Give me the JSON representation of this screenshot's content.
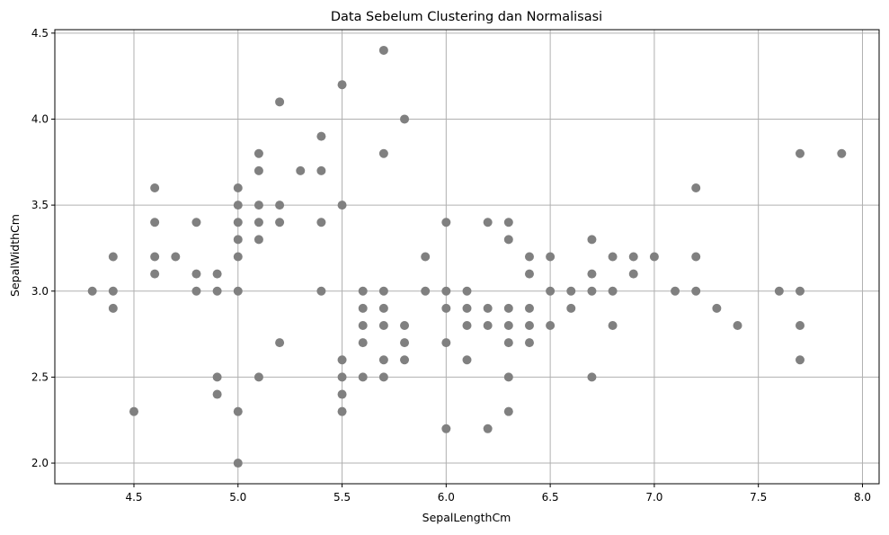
{
  "chart_data": {
    "type": "scatter",
    "title": "Data Sebelum Clustering dan Normalisasi",
    "xlabel": "SepalLengthCm",
    "ylabel": "SepalWidthCm",
    "xlim": [
      4.12,
      8.08
    ],
    "ylim": [
      1.88,
      4.52
    ],
    "xticks": [
      "4.5",
      "5.0",
      "5.5",
      "6.0",
      "6.5",
      "7.0",
      "7.5",
      "8.0"
    ],
    "yticks": [
      "2.0",
      "2.5",
      "3.0",
      "3.5",
      "4.0",
      "4.5"
    ],
    "grid": true,
    "marker_color": "#808080",
    "grid_color": "#b0b0b0",
    "points": [
      [
        4.3,
        3.0
      ],
      [
        4.4,
        3.2
      ],
      [
        4.4,
        3.0
      ],
      [
        4.4,
        2.9
      ],
      [
        4.5,
        2.3
      ],
      [
        4.6,
        3.6
      ],
      [
        4.6,
        3.4
      ],
      [
        4.6,
        3.2
      ],
      [
        4.6,
        3.1
      ],
      [
        4.7,
        3.2
      ],
      [
        4.8,
        3.4
      ],
      [
        4.8,
        3.1
      ],
      [
        4.8,
        3.0
      ],
      [
        4.9,
        3.1
      ],
      [
        4.9,
        3.0
      ],
      [
        4.9,
        2.5
      ],
      [
        4.9,
        2.4
      ],
      [
        5.0,
        3.6
      ],
      [
        5.0,
        3.5
      ],
      [
        5.0,
        3.4
      ],
      [
        5.0,
        3.3
      ],
      [
        5.0,
        3.2
      ],
      [
        5.0,
        3.0
      ],
      [
        5.0,
        2.3
      ],
      [
        5.0,
        2.0
      ],
      [
        5.1,
        3.8
      ],
      [
        5.1,
        3.7
      ],
      [
        5.1,
        3.5
      ],
      [
        5.1,
        3.4
      ],
      [
        5.1,
        3.3
      ],
      [
        5.1,
        2.5
      ],
      [
        5.2,
        4.1
      ],
      [
        5.2,
        3.5
      ],
      [
        5.2,
        3.4
      ],
      [
        5.2,
        2.7
      ],
      [
        5.3,
        3.7
      ],
      [
        5.4,
        3.9
      ],
      [
        5.4,
        3.7
      ],
      [
        5.4,
        3.4
      ],
      [
        5.4,
        3.0
      ],
      [
        5.5,
        4.2
      ],
      [
        5.5,
        3.5
      ],
      [
        5.5,
        2.6
      ],
      [
        5.5,
        2.5
      ],
      [
        5.5,
        2.4
      ],
      [
        5.5,
        2.3
      ],
      [
        5.6,
        3.0
      ],
      [
        5.6,
        2.9
      ],
      [
        5.6,
        2.8
      ],
      [
        5.6,
        2.7
      ],
      [
        5.6,
        2.5
      ],
      [
        5.7,
        4.4
      ],
      [
        5.7,
        3.8
      ],
      [
        5.7,
        3.0
      ],
      [
        5.7,
        2.9
      ],
      [
        5.7,
        2.8
      ],
      [
        5.7,
        2.6
      ],
      [
        5.7,
        2.5
      ],
      [
        5.8,
        4.0
      ],
      [
        5.8,
        2.8
      ],
      [
        5.8,
        2.7
      ],
      [
        5.8,
        2.6
      ],
      [
        5.9,
        3.2
      ],
      [
        5.9,
        3.0
      ],
      [
        6.0,
        3.4
      ],
      [
        6.0,
        3.0
      ],
      [
        6.0,
        2.9
      ],
      [
        6.0,
        2.7
      ],
      [
        6.0,
        2.2
      ],
      [
        6.1,
        3.0
      ],
      [
        6.1,
        2.9
      ],
      [
        6.1,
        2.8
      ],
      [
        6.1,
        2.6
      ],
      [
        6.2,
        3.4
      ],
      [
        6.2,
        2.9
      ],
      [
        6.2,
        2.8
      ],
      [
        6.2,
        2.2
      ],
      [
        6.3,
        3.4
      ],
      [
        6.3,
        3.3
      ],
      [
        6.3,
        2.9
      ],
      [
        6.3,
        2.8
      ],
      [
        6.3,
        2.7
      ],
      [
        6.3,
        2.5
      ],
      [
        6.3,
        2.3
      ],
      [
        6.4,
        3.2
      ],
      [
        6.4,
        3.1
      ],
      [
        6.4,
        2.9
      ],
      [
        6.4,
        2.8
      ],
      [
        6.4,
        2.7
      ],
      [
        6.5,
        3.2
      ],
      [
        6.5,
        3.0
      ],
      [
        6.5,
        2.8
      ],
      [
        6.6,
        3.0
      ],
      [
        6.6,
        2.9
      ],
      [
        6.7,
        3.3
      ],
      [
        6.7,
        3.1
      ],
      [
        6.7,
        3.0
      ],
      [
        6.7,
        2.5
      ],
      [
        6.8,
        3.2
      ],
      [
        6.8,
        3.0
      ],
      [
        6.8,
        2.8
      ],
      [
        6.9,
        3.2
      ],
      [
        6.9,
        3.1
      ],
      [
        7.0,
        3.2
      ],
      [
        7.1,
        3.0
      ],
      [
        7.2,
        3.6
      ],
      [
        7.2,
        3.2
      ],
      [
        7.2,
        3.0
      ],
      [
        7.3,
        2.9
      ],
      [
        7.4,
        2.8
      ],
      [
        7.6,
        3.0
      ],
      [
        7.7,
        3.8
      ],
      [
        7.7,
        3.0
      ],
      [
        7.7,
        2.8
      ],
      [
        7.7,
        2.6
      ],
      [
        7.9,
        3.8
      ]
    ]
  }
}
